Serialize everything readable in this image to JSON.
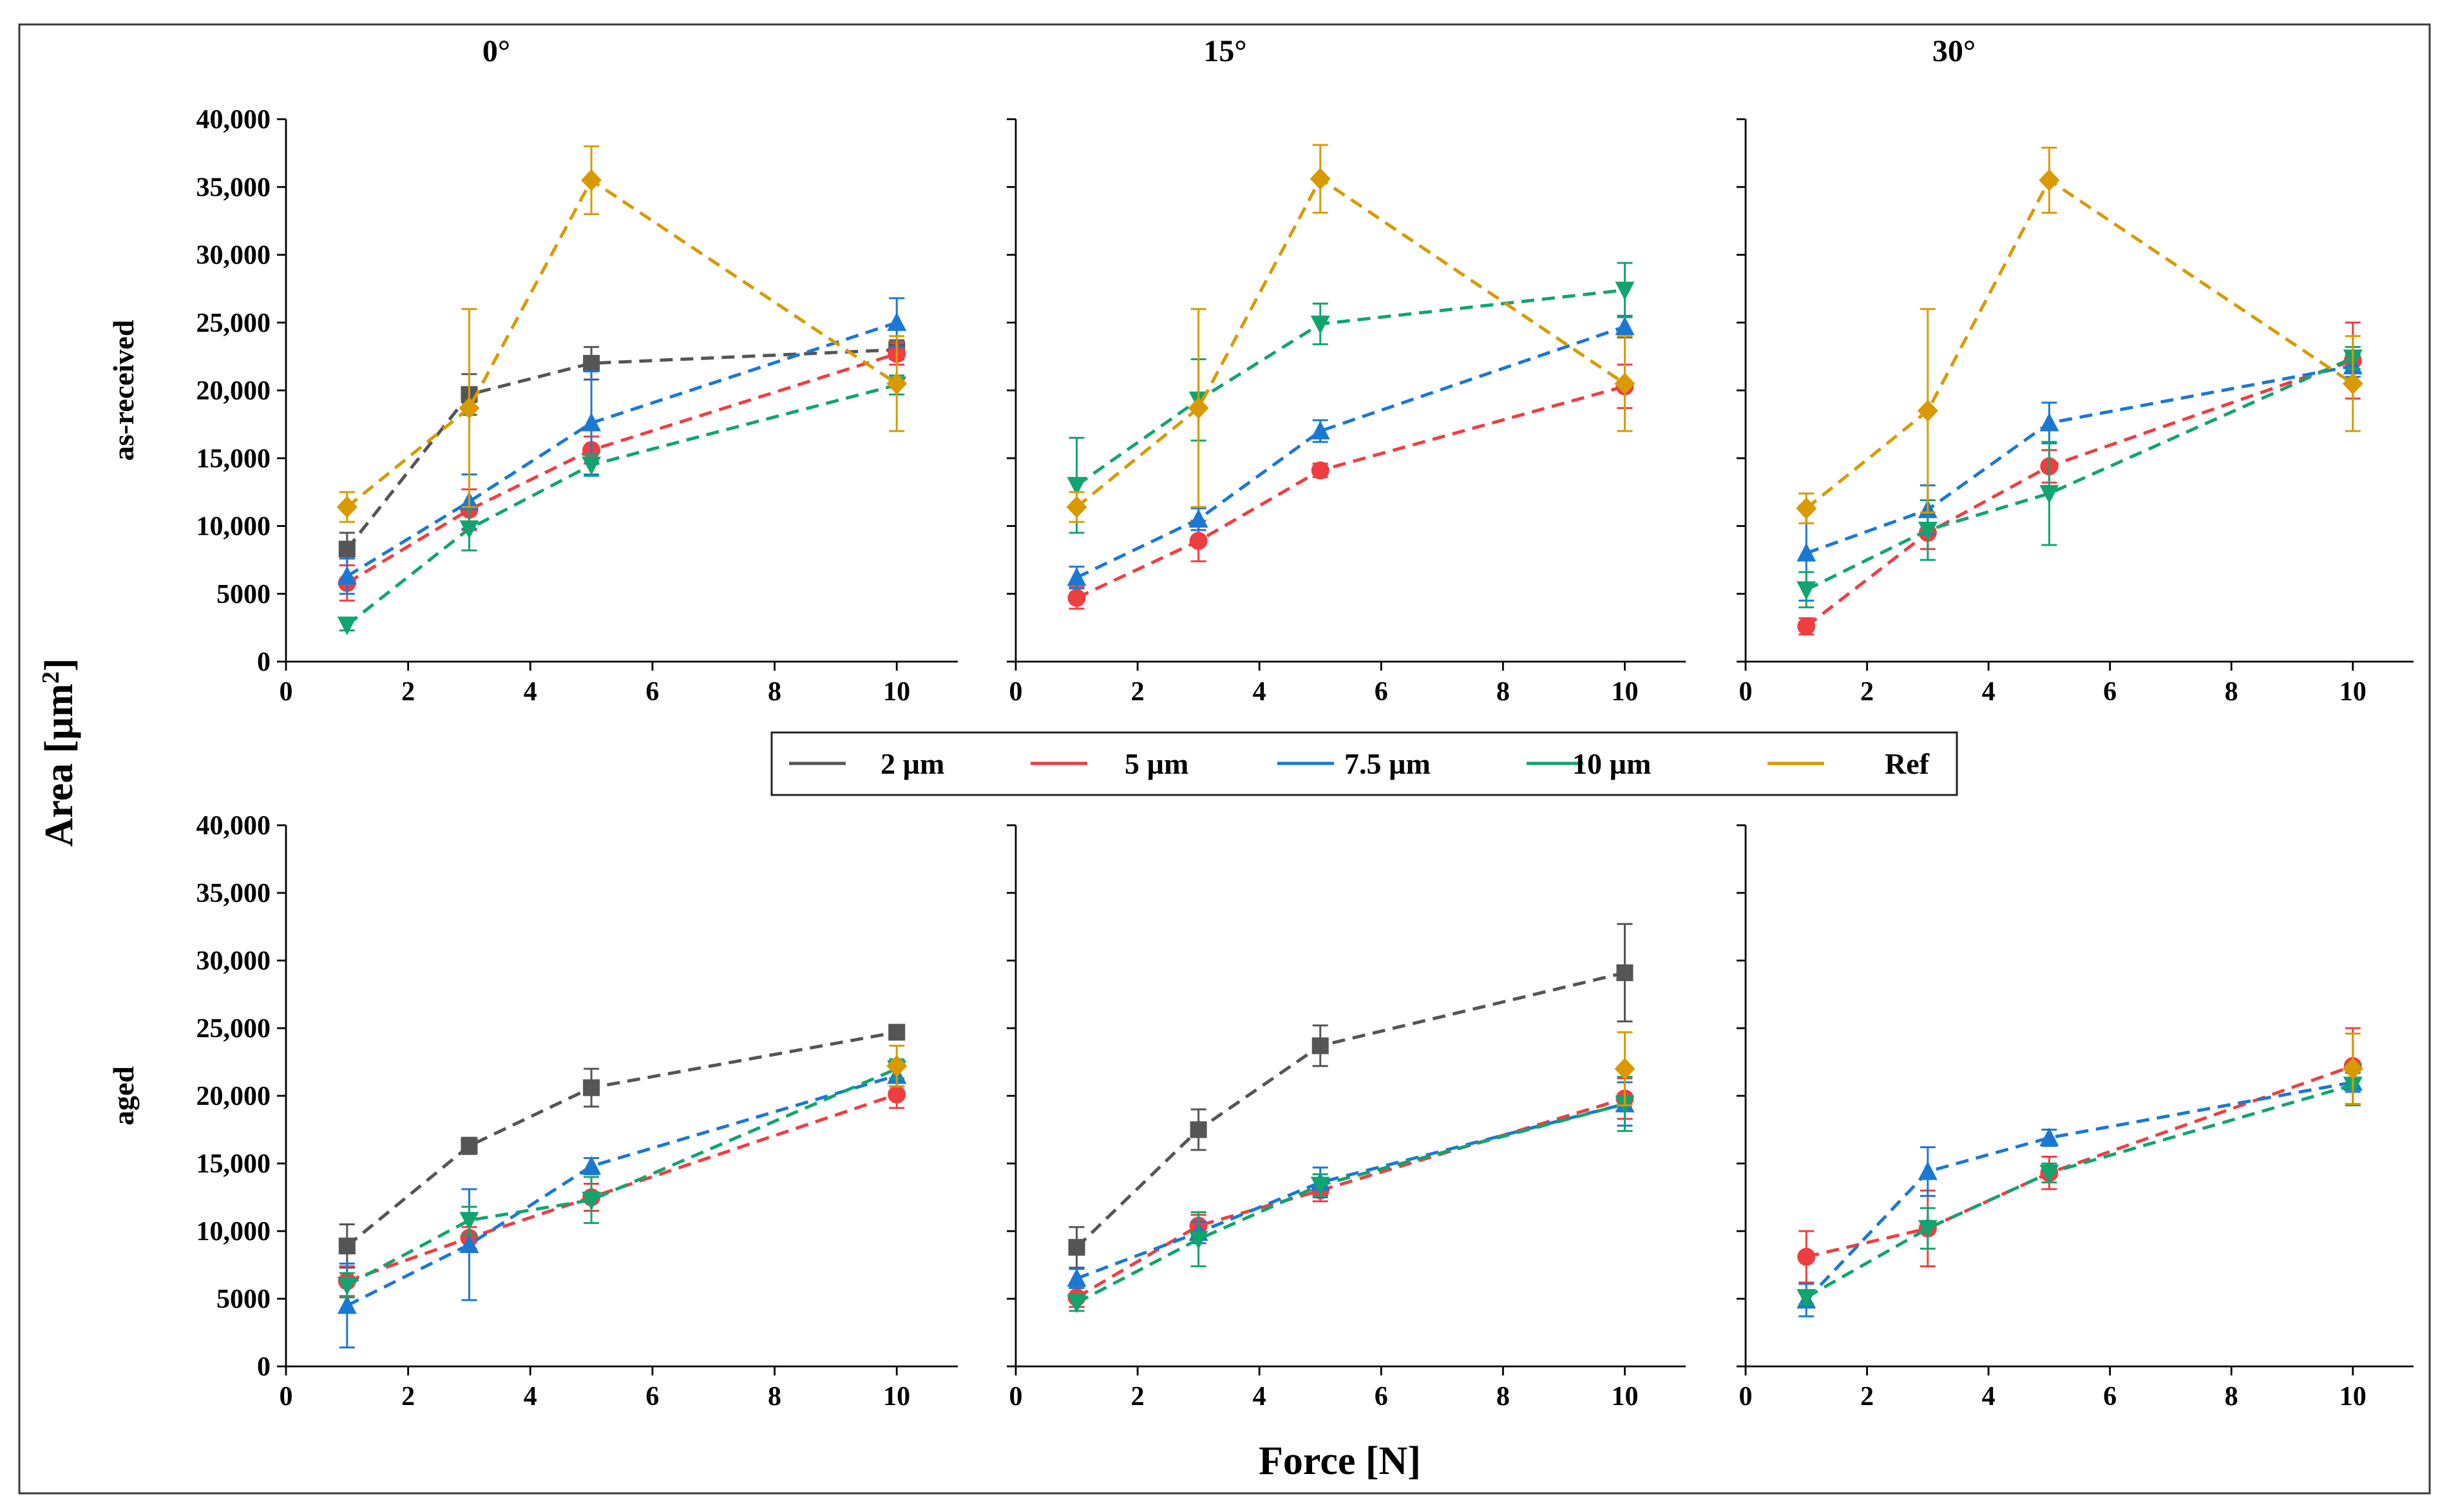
{
  "chart_data": {
    "type": "line",
    "layout": "grid",
    "rows": [
      "as-received",
      "aged"
    ],
    "columns": [
      "0°",
      "15°",
      "30°"
    ],
    "xlabel": "Force [N]",
    "ylabel": "Area [µm²]",
    "ylabel_base": "Area [µm",
    "ylabel_sup": "2",
    "ylabel_end": "]",
    "xlim": [
      0,
      11
    ],
    "ylim": [
      0,
      40000
    ],
    "xticks": [
      0,
      2,
      4,
      6,
      8,
      10
    ],
    "yticks": [
      0,
      5000,
      10000,
      15000,
      20000,
      25000,
      30000,
      35000,
      40000
    ],
    "ytick_labels": [
      "0",
      "5000",
      "10,000",
      "15,000",
      "20,000",
      "25,000",
      "30,000",
      "35,000",
      "40,000"
    ],
    "colors": {
      "2 µm": "#555555",
      "5 µm": "#ef3e42",
      "7.5 µm": "#1a78d3",
      "10 µm": "#11a46f",
      "Ref": "#d99a00"
    },
    "markers": {
      "2 µm": "square",
      "5 µm": "circle",
      "7.5 µm": "triangle-up",
      "10 µm": "triangle-down",
      "Ref": "diamond"
    },
    "legend": {
      "position": "between-rows",
      "entries": [
        "2 µm",
        "5 µm",
        "7.5 µm",
        "10 µm",
        "Ref"
      ]
    },
    "panels": [
      {
        "row": "as-received",
        "column": "0°",
        "title": "0°",
        "row_label": "as-received",
        "series": [
          {
            "name": "2 µm",
            "x": [
              1,
              3,
              5,
              10
            ],
            "y": [
              8300,
              19700,
              22000,
              23000
            ],
            "err": [
              1200,
              1500,
              1200,
              700
            ]
          },
          {
            "name": "5 µm",
            "x": [
              1,
              3,
              5,
              10
            ],
            "y": [
              5800,
              11200,
              15600,
              22700
            ],
            "err": [
              1300,
              1500,
              1000,
              800
            ]
          },
          {
            "name": "7.5 µm",
            "x": [
              1,
              3,
              5,
              10
            ],
            "y": [
              6300,
              11800,
              17600,
              25000
            ],
            "err": [
              1300,
              2000,
              3800,
              1800
            ]
          },
          {
            "name": "10 µm",
            "x": [
              1,
              3,
              5,
              10
            ],
            "y": [
              2700,
              9800,
              14500,
              20400
            ],
            "err": [
              400,
              1600,
              800,
              700
            ]
          },
          {
            "name": "Ref",
            "x": [
              1,
              3,
              5,
              10
            ],
            "y": [
              11400,
              18700,
              35500,
              20500
            ],
            "err": [
              1100,
              7300,
              2500,
              3500
            ]
          }
        ]
      },
      {
        "row": "as-received",
        "column": "15°",
        "title": "15°",
        "row_label": "",
        "series": [
          {
            "name": "5 µm",
            "x": [
              1,
              3,
              5,
              10
            ],
            "y": [
              4700,
              8900,
              14100,
              20300
            ],
            "err": [
              800,
              1500,
              500,
              1600
            ]
          },
          {
            "name": "7.5 µm",
            "x": [
              1,
              3,
              5,
              10
            ],
            "y": [
              6200,
              10500,
              17000,
              24700
            ],
            "err": [
              800,
              800,
              800,
              800
            ]
          },
          {
            "name": "10 µm",
            "x": [
              1,
              3,
              5,
              10
            ],
            "y": [
              13000,
              19300,
              24900,
              27400
            ],
            "err": [
              3500,
              3000,
              1500,
              2000
            ]
          },
          {
            "name": "Ref",
            "x": [
              1,
              3,
              5,
              10
            ],
            "y": [
              11400,
              18700,
              35600,
              20500
            ],
            "err": [
              1100,
              7300,
              2500,
              3500
            ]
          }
        ]
      },
      {
        "row": "as-received",
        "column": "30°",
        "title": "30°",
        "row_label": "",
        "series": [
          {
            "name": "5 µm",
            "x": [
              1,
              3,
              5,
              10
            ],
            "y": [
              2600,
              9500,
              14400,
              22200
            ],
            "err": [
              600,
              1200,
              1200,
              2800
            ]
          },
          {
            "name": "7.5 µm",
            "x": [
              1,
              3,
              5,
              10
            ],
            "y": [
              8000,
              11200,
              17600,
              21800
            ],
            "err": [
              3500,
              1800,
              1500,
              800
            ]
          },
          {
            "name": "10 µm",
            "x": [
              1,
              3,
              5,
              10
            ],
            "y": [
              5300,
              9700,
              12400,
              22400
            ],
            "err": [
              1300,
              2200,
              3800,
              800
            ]
          },
          {
            "name": "Ref",
            "x": [
              1,
              3,
              5,
              10
            ],
            "y": [
              11300,
              18500,
              35500,
              20500
            ],
            "err": [
              1100,
              7500,
              2400,
              3500
            ]
          }
        ]
      },
      {
        "row": "aged",
        "column": "0°",
        "title": "",
        "row_label": "aged",
        "series": [
          {
            "name": "2 µm",
            "x": [
              1,
              3,
              5,
              10
            ],
            "y": [
              8900,
              16300,
              20600,
              24700
            ],
            "err": [
              1600,
              600,
              1400,
              300
            ]
          },
          {
            "name": "5 µm",
            "x": [
              1,
              3,
              5,
              10
            ],
            "y": [
              6300,
              9500,
              12500,
              20100
            ],
            "err": [
              1100,
              800,
              1000,
              1000
            ]
          },
          {
            "name": "7.5 µm",
            "x": [
              1,
              3,
              5,
              10
            ],
            "y": [
              4500,
              9000,
              14800,
              21500
            ],
            "err": [
              3100,
              4100,
              600,
              800
            ]
          },
          {
            "name": "10 µm",
            "x": [
              1,
              3,
              5,
              10
            ],
            "y": [
              6000,
              10800,
              12300,
              22000
            ],
            "err": [
              900,
              1000,
              1700,
              700
            ]
          },
          {
            "name": "Ref",
            "x": [
              10
            ],
            "y": [
              22200
            ],
            "err": [
              1500
            ]
          }
        ]
      },
      {
        "row": "aged",
        "column": "15°",
        "title": "",
        "row_label": "",
        "series": [
          {
            "name": "2 µm",
            "x": [
              1,
              3,
              5,
              10
            ],
            "y": [
              8800,
              17500,
              23700,
              29100
            ],
            "err": [
              1500,
              1500,
              1500,
              3600
            ]
          },
          {
            "name": "5 µm",
            "x": [
              1,
              3,
              5,
              10
            ],
            "y": [
              5100,
              10400,
              13000,
              19800
            ],
            "err": [
              700,
              800,
              800,
              1500
            ]
          },
          {
            "name": "7.5 µm",
            "x": [
              1,
              3,
              5,
              10
            ],
            "y": [
              6500,
              9900,
              13600,
              19400
            ],
            "err": [
              700,
              800,
              1100,
              1600
            ]
          },
          {
            "name": "10 µm",
            "x": [
              1,
              3,
              5,
              10
            ],
            "y": [
              4700,
              9400,
              13400,
              19400
            ],
            "err": [
              600,
              2000,
              800,
              2000
            ]
          },
          {
            "name": "Ref",
            "x": [
              10
            ],
            "y": [
              22000
            ],
            "err": [
              2700
            ]
          }
        ]
      },
      {
        "row": "aged",
        "column": "30°",
        "title": "",
        "row_label": "",
        "series": [
          {
            "name": "5 µm",
            "x": [
              1,
              3,
              5,
              10
            ],
            "y": [
              8100,
              10200,
              14300,
              22200
            ],
            "err": [
              1900,
              2800,
              1200,
              2800
            ]
          },
          {
            "name": "7.5 µm",
            "x": [
              1,
              3,
              5,
              10
            ],
            "y": [
              4900,
              14400,
              16900,
              21000
            ],
            "err": [
              1200,
              1800,
              600,
              700
            ]
          },
          {
            "name": "10 µm",
            "x": [
              1,
              3,
              5,
              10
            ],
            "y": [
              5100,
              10200,
              14300,
              20800
            ],
            "err": [
              500,
              1500,
              700,
              1500
            ]
          },
          {
            "name": "Ref",
            "x": [
              10
            ],
            "y": [
              22000
            ],
            "err": [
              2600
            ]
          }
        ]
      }
    ]
  }
}
